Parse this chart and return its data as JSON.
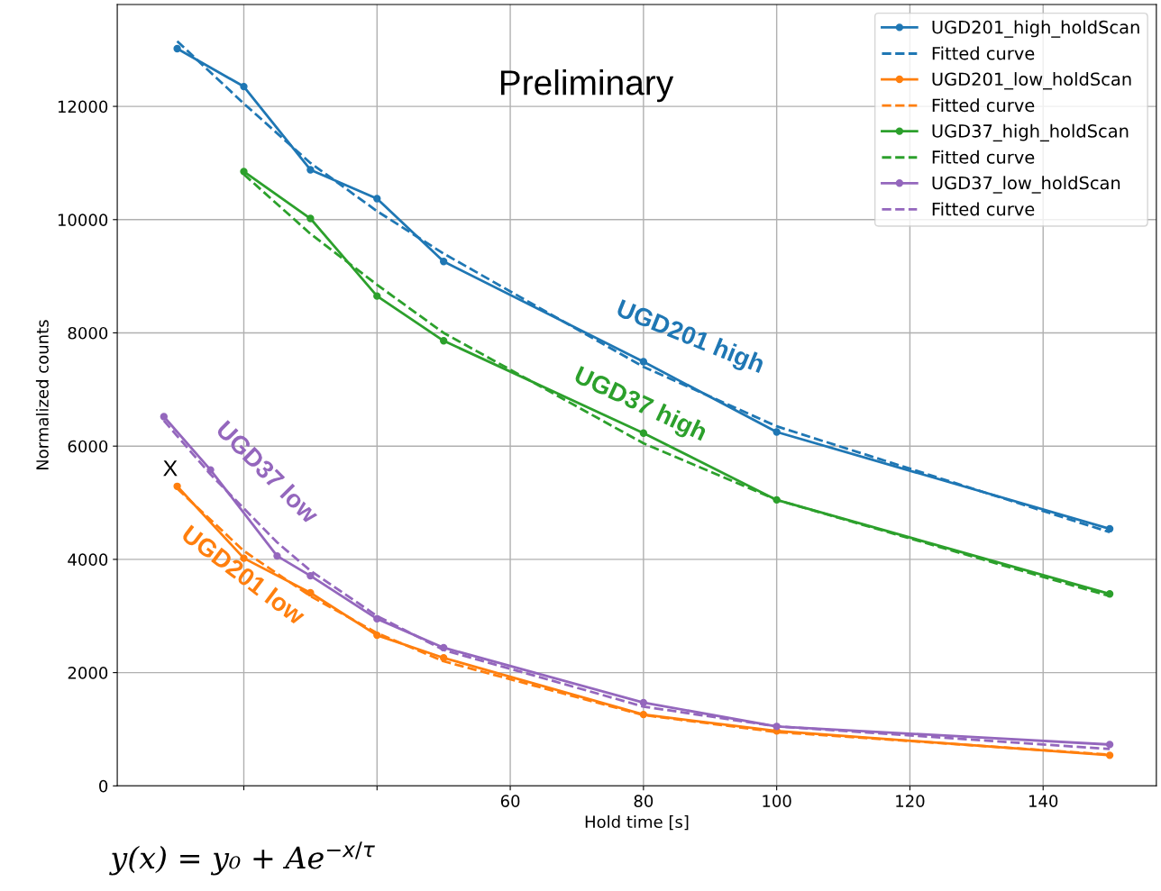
{
  "chart_data": {
    "type": "line",
    "xlabel": "Hold time [s]",
    "ylabel": "Normalized counts",
    "xlim": [
      1,
      157
    ],
    "ylim": [
      0,
      13800
    ],
    "xticks": [
      {
        "value": 20,
        "label": null
      },
      {
        "value": 40,
        "label": null
      },
      60,
      80,
      100,
      120,
      140
    ],
    "yticks": [
      0,
      2000,
      4000,
      6000,
      8000,
      10000,
      12000
    ],
    "grid": true,
    "legend": "top right",
    "series": [
      {
        "name": "UGD201_high_holdScan",
        "color": "#1f77b4",
        "marker": "circle",
        "line_style": "solid",
        "x": [
          10,
          20,
          30,
          40,
          50,
          80,
          100,
          150
        ],
        "values": [
          13020,
          12350,
          10880,
          10370,
          9260,
          7490,
          6250,
          4540
        ]
      },
      {
        "name": "Fitted curve",
        "color": "#1f77b4",
        "marker": "none",
        "line_style": "dashed",
        "x": [
          10,
          20,
          30,
          40,
          50,
          80,
          100,
          150
        ],
        "values": [
          13150,
          12050,
          11000,
          10150,
          9400,
          7400,
          6350,
          4480
        ]
      },
      {
        "name": "UGD201_low_holdScan",
        "color": "#ff7f0e",
        "marker": "circle",
        "line_style": "solid",
        "x": [
          10,
          20,
          30,
          40,
          50,
          80,
          100,
          150
        ],
        "values": [
          5290,
          4020,
          3410,
          2660,
          2260,
          1260,
          970,
          540
        ]
      },
      {
        "name": "Fitted curve",
        "color": "#ff7f0e",
        "marker": "none",
        "line_style": "dashed",
        "x": [
          10,
          20,
          30,
          40,
          50,
          80,
          100,
          150
        ],
        "values": [
          5250,
          4150,
          3350,
          2700,
          2200,
          1250,
          950,
          550
        ]
      },
      {
        "name": "UGD37_high_holdScan",
        "color": "#2ca02c",
        "marker": "circle",
        "line_style": "solid",
        "x": [
          20,
          30,
          40,
          50,
          80,
          100,
          150
        ],
        "values": [
          10850,
          10020,
          8650,
          7860,
          6230,
          5050,
          3390
        ]
      },
      {
        "name": "Fitted curve",
        "color": "#2ca02c",
        "marker": "none",
        "line_style": "dashed",
        "x": [
          20,
          30,
          40,
          50,
          80,
          100,
          150
        ],
        "values": [
          10800,
          9750,
          8850,
          8000,
          6050,
          5050,
          3350
        ]
      },
      {
        "name": "UGD37_low_holdScan",
        "color": "#9467bd",
        "marker": "circle",
        "line_style": "solid",
        "x": [
          8,
          15,
          25,
          30,
          40,
          50,
          80,
          100,
          150
        ],
        "values": [
          6520,
          5580,
          4060,
          3710,
          2950,
          2440,
          1470,
          1050,
          730
        ]
      },
      {
        "name": "Fitted curve",
        "color": "#9467bd",
        "marker": "none",
        "line_style": "dashed",
        "x": [
          8,
          15,
          25,
          30,
          40,
          50,
          80,
          100,
          150
        ],
        "values": [
          6450,
          5500,
          4300,
          3800,
          3000,
          2400,
          1400,
          1050,
          650
        ]
      }
    ],
    "annotations": [
      "Preliminary",
      "X",
      "UGD201 high",
      "UGD37 high",
      "UGD37 low",
      "UGD201 low",
      "y(x) = y₀ + Ae$^{−x/τ}$"
    ]
  }
}
